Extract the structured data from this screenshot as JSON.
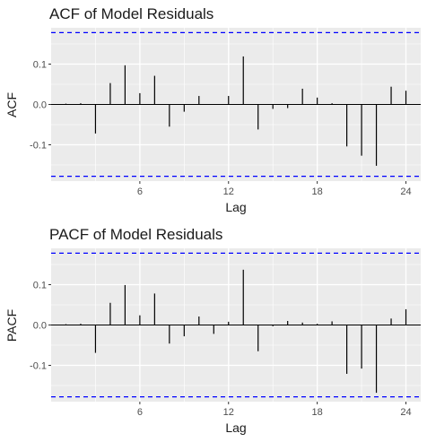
{
  "chart_data": [
    {
      "type": "bar",
      "title": "ACF of Model Residuals",
      "xlabel": "Lag",
      "ylabel": "ACF",
      "xlim": [
        0,
        25
      ],
      "ylim": [
        -0.19,
        0.19
      ],
      "x_ticks": [
        6,
        12,
        18,
        24
      ],
      "x_tick_labels": [
        "6",
        "12",
        "18",
        "24"
      ],
      "y_ticks": [
        -0.1,
        0.0,
        0.1
      ],
      "y_tick_labels": [
        "-0.1",
        "0.0",
        "0.1"
      ],
      "confidence_bound": 0.178,
      "grid": true,
      "colors": {
        "bar": "#000000",
        "bound": "#0000ff",
        "panel": "#ebebeb",
        "grid": "#ffffff"
      },
      "lags": [
        1,
        2,
        3,
        4,
        5,
        6,
        7,
        8,
        9,
        10,
        11,
        12,
        13,
        14,
        15,
        16,
        17,
        18,
        19,
        20,
        21,
        22,
        23,
        24
      ],
      "values": [
        0.002,
        0.003,
        -0.072,
        0.053,
        0.097,
        0.028,
        0.071,
        -0.055,
        -0.018,
        0.021,
        0.0,
        0.021,
        0.119,
        -0.062,
        -0.011,
        -0.009,
        0.039,
        0.017,
        0.003,
        -0.104,
        -0.127,
        -0.152,
        0.044,
        0.034
      ]
    },
    {
      "type": "bar",
      "title": "PACF of Model Residuals",
      "xlabel": "Lag",
      "ylabel": "PACF",
      "xlim": [
        0,
        25
      ],
      "ylim": [
        -0.19,
        0.19
      ],
      "x_ticks": [
        6,
        12,
        18,
        24
      ],
      "x_tick_labels": [
        "6",
        "12",
        "18",
        "24"
      ],
      "y_ticks": [
        -0.1,
        0.0,
        0.1
      ],
      "y_tick_labels": [
        "-0.1",
        "0.0",
        "0.1"
      ],
      "confidence_bound": 0.178,
      "grid": true,
      "colors": {
        "bar": "#000000",
        "bound": "#0000ff",
        "panel": "#ebebeb",
        "grid": "#ffffff"
      },
      "lags": [
        1,
        2,
        3,
        4,
        5,
        6,
        7,
        8,
        9,
        10,
        11,
        12,
        13,
        14,
        15,
        16,
        17,
        18,
        19,
        20,
        21,
        22,
        23,
        24
      ],
      "values": [
        0.002,
        0.003,
        -0.069,
        0.055,
        0.099,
        0.024,
        0.078,
        -0.046,
        -0.028,
        0.021,
        -0.022,
        0.008,
        0.137,
        -0.065,
        -0.003,
        0.01,
        0.006,
        0.003,
        0.009,
        -0.121,
        -0.108,
        -0.168,
        0.016,
        0.039
      ]
    }
  ]
}
